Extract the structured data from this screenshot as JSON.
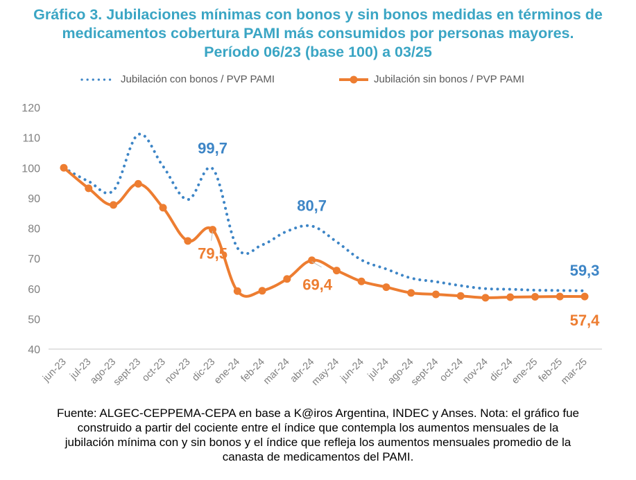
{
  "title_lines": [
    "Gráfico 3. Jubilaciones mínimas con bonos y sin bonos medidas en términos de",
    "medicamentos cobertura PAMI más consumidos por personas mayores.",
    "Período 06/23 (base 100) a 03/25"
  ],
  "source_lines": [
    "Fuente: ALGEC-CEPPEMA-CEPA en base a K@iros Argentina, INDEC y Anses. Nota: el gráfico fue",
    "construido a partir del cociente entre el índice que contempla los aumentos mensuales de la",
    "jubilación mínima con y sin bonos y el índice que refleja los aumentos mensuales promedio de la",
    "canasta de medicamentos del PAMI."
  ],
  "colors": {
    "title": "#3aa5c4",
    "con_bonos": "#3d85c6",
    "sin_bonos": "#ed7d31",
    "axis_text": "#7f7f7f",
    "grid": "#d9d9d9"
  },
  "chart_data": {
    "type": "line",
    "title": "Gráfico 3. Jubilaciones mínimas con bonos y sin bonos medidas en términos de medicamentos cobertura PAMI más consumidos por personas mayores. Período 06/23 (base 100) a 03/25",
    "xlabel": "",
    "ylabel": "",
    "ylim": [
      40,
      120
    ],
    "yticks": [
      40,
      50,
      60,
      70,
      80,
      90,
      100,
      110,
      120
    ],
    "ytick_labels": [
      "40",
      "50",
      "60",
      "70",
      "80",
      "90",
      "100",
      "110",
      "120"
    ],
    "grid": false,
    "legend_position": "top",
    "categories": [
      "jun-23",
      "jul-23",
      "ago-23",
      "sept-23",
      "oct-23",
      "nov-23",
      "dic-23",
      "ene-24",
      "feb-24",
      "mar-24",
      "abr-24",
      "may-24",
      "jun-24",
      "jul-24",
      "ago-24",
      "sept-24",
      "oct-24",
      "nov-24",
      "dic-24",
      "ene-25",
      "feb-25",
      "mar-25"
    ],
    "series": [
      {
        "name": "Jubilación con bonos / PVP PAMI",
        "style": "dotted",
        "values": [
          100,
          95.5,
          92.5,
          111,
          100.5,
          89.5,
          99.7,
          73.5,
          74.5,
          79,
          80.7,
          75.5,
          69.5,
          66.5,
          63.5,
          62.3,
          61,
          60,
          59.8,
          59.5,
          59.4,
          59.3
        ],
        "data_labels": [
          {
            "index": 6,
            "text": "99,7"
          },
          {
            "index": 10,
            "text": "80,7"
          },
          {
            "index": 21,
            "text": "59,3"
          }
        ]
      },
      {
        "name": "Jubilación sin bonos / PVP PAMI",
        "style": "solid-markers",
        "values": [
          100,
          93.2,
          87.7,
          94.7,
          86.8,
          75.8,
          79.5,
          59.2,
          59.3,
          63.2,
          69.4,
          66,
          62.4,
          60.5,
          58.6,
          58.1,
          57.6,
          57,
          57.2,
          57.3,
          57.4,
          57.4
        ],
        "data_labels": [
          {
            "index": 6,
            "text": "79,5"
          },
          {
            "index": 10,
            "text": "69,4"
          },
          {
            "index": 21,
            "text": "57,4"
          }
        ]
      }
    ]
  }
}
